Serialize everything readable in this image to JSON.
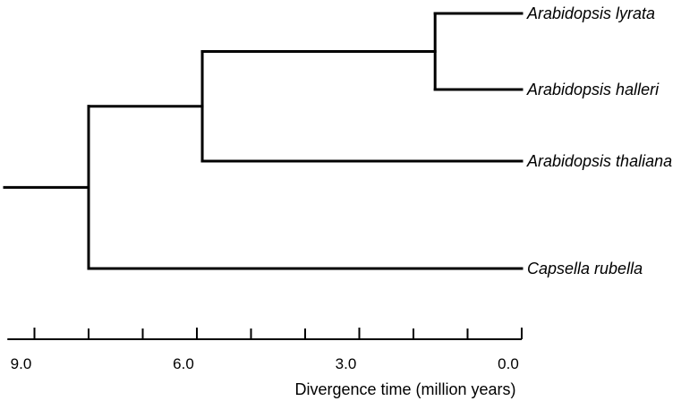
{
  "tree": {
    "type": "phylogenetic-tree",
    "root_age": 8.0,
    "nodes": {
      "root": {
        "age": 8.0,
        "children": [
          "n_arab",
          "t_caps"
        ]
      },
      "n_arab": {
        "age": 5.9,
        "children": [
          "n_lh",
          "t_thal"
        ]
      },
      "n_lh": {
        "age": 1.6,
        "children": [
          "t_lyr",
          "t_hal"
        ]
      }
    },
    "taxa": [
      {
        "id": "t_lyr",
        "label": "Arabidopsis lyrata",
        "order": 0
      },
      {
        "id": "t_hal",
        "label": "Arabidopsis halleri",
        "order": 1
      },
      {
        "id": "t_thal",
        "label": "Arabidopsis thaliana",
        "order": 2
      },
      {
        "id": "t_caps",
        "label": "Capsella rubella",
        "order": 3
      }
    ]
  },
  "axis": {
    "title": "Divergence time (million years)",
    "max": 9.5,
    "min": 0.0,
    "labels": [
      "9.0",
      "6.0",
      "3.0",
      "0.0"
    ],
    "label_values": [
      9.0,
      6.0,
      3.0,
      0.0
    ],
    "minor_ticks": [
      8.0,
      7.0,
      5.0,
      4.0,
      2.0,
      1.0
    ]
  }
}
